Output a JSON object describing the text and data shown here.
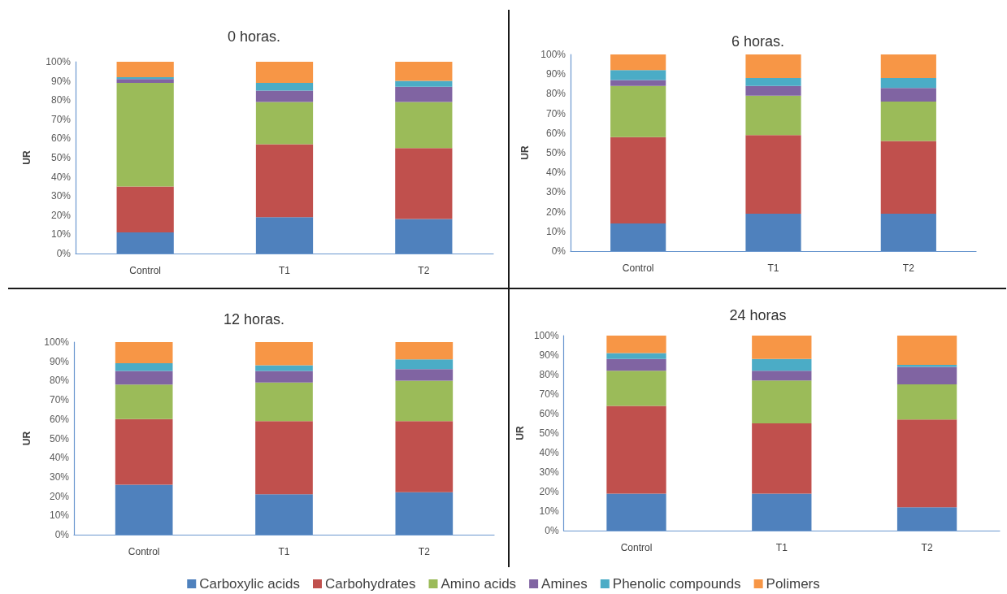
{
  "chart_data": [
    {
      "type": "bar",
      "title": "0 horas.",
      "ylabel": "UR",
      "categories": [
        "Control",
        "T1",
        "T2"
      ],
      "stacked": true,
      "ylim": [
        0,
        100
      ],
      "yticks": [
        {
          "value": 0,
          "label": "0%"
        },
        {
          "value": 10,
          "label": "10%"
        },
        {
          "value": 20,
          "label": "20%"
        },
        {
          "value": 30,
          "label": "30%"
        },
        {
          "value": 40,
          "label": "40%"
        },
        {
          "value": 50,
          "label": "50%"
        },
        {
          "value": 60,
          "label": "60%"
        },
        {
          "value": 70,
          "label": "70%"
        },
        {
          "value": 80,
          "label": "80%"
        },
        {
          "value": 90,
          "label": "90%"
        },
        {
          "value": 100,
          "label": "100%"
        }
      ],
      "grid": false,
      "legend": "bottom",
      "series": [
        {
          "name": "Carboxylic acids",
          "color": "#4f81bd",
          "values": [
            11,
            19,
            18
          ]
        },
        {
          "name": "Carbohydrates",
          "color": "#c0504d",
          "values": [
            24,
            38,
            37
          ]
        },
        {
          "name": "Amino acids",
          "color": "#9bbb59",
          "values": [
            54,
            22,
            24
          ]
        },
        {
          "name": "Amines",
          "color": "#8064a2",
          "values": [
            2,
            6,
            8
          ]
        },
        {
          "name": "Phenolic compounds",
          "color": "#4bacc6",
          "values": [
            1,
            4,
            3
          ]
        },
        {
          "name": "Polimers",
          "color": "#f79646",
          "values": [
            8,
            11,
            10
          ]
        }
      ]
    },
    {
      "type": "bar",
      "title": "6 horas.",
      "ylabel": "UR",
      "categories": [
        "Control",
        "T1",
        "T2"
      ],
      "stacked": true,
      "ylim": [
        0,
        100
      ],
      "yticks": [
        {
          "value": 0,
          "label": "0%"
        },
        {
          "value": 10,
          "label": "10%"
        },
        {
          "value": 20,
          "label": "20%"
        },
        {
          "value": 30,
          "label": "30%"
        },
        {
          "value": 40,
          "label": "40%"
        },
        {
          "value": 50,
          "label": "50%"
        },
        {
          "value": 60,
          "label": "60%"
        },
        {
          "value": 70,
          "label": "70%"
        },
        {
          "value": 80,
          "label": "80%"
        },
        {
          "value": 90,
          "label": "90%"
        },
        {
          "value": 100,
          "label": "100%"
        }
      ],
      "grid": false,
      "legend": "bottom",
      "series": [
        {
          "name": "Carboxylic acids",
          "color": "#4f81bd",
          "values": [
            14,
            19,
            19
          ]
        },
        {
          "name": "Carbohydrates",
          "color": "#c0504d",
          "values": [
            44,
            40,
            37
          ]
        },
        {
          "name": "Amino acids",
          "color": "#9bbb59",
          "values": [
            26,
            20,
            20
          ]
        },
        {
          "name": "Amines",
          "color": "#8064a2",
          "values": [
            3,
            5,
            7
          ]
        },
        {
          "name": "Phenolic compounds",
          "color": "#4bacc6",
          "values": [
            5,
            4,
            5
          ]
        },
        {
          "name": "Polimers",
          "color": "#f79646",
          "values": [
            8,
            12,
            12
          ]
        }
      ]
    },
    {
      "type": "bar",
      "title": "12 horas.",
      "ylabel": "UR",
      "categories": [
        "Control",
        "T1",
        "T2"
      ],
      "stacked": true,
      "ylim": [
        0,
        100
      ],
      "yticks": [
        {
          "value": 0,
          "label": "0%"
        },
        {
          "value": 10,
          "label": "10%"
        },
        {
          "value": 20,
          "label": "20%"
        },
        {
          "value": 30,
          "label": "30%"
        },
        {
          "value": 40,
          "label": "40%"
        },
        {
          "value": 50,
          "label": "50%"
        },
        {
          "value": 60,
          "label": "60%"
        },
        {
          "value": 70,
          "label": "70%"
        },
        {
          "value": 80,
          "label": "80%"
        },
        {
          "value": 90,
          "label": "90%"
        },
        {
          "value": 100,
          "label": "100%"
        }
      ],
      "grid": false,
      "legend": "bottom",
      "series": [
        {
          "name": "Carboxylic acids",
          "color": "#4f81bd",
          "values": [
            26,
            21,
            22
          ]
        },
        {
          "name": "Carbohydrates",
          "color": "#c0504d",
          "values": [
            34,
            38,
            37
          ]
        },
        {
          "name": "Amino acids",
          "color": "#9bbb59",
          "values": [
            18,
            20,
            21
          ]
        },
        {
          "name": "Amines",
          "color": "#8064a2",
          "values": [
            7,
            6,
            6
          ]
        },
        {
          "name": "Phenolic compounds",
          "color": "#4bacc6",
          "values": [
            4,
            3,
            5
          ]
        },
        {
          "name": "Polimers",
          "color": "#f79646",
          "values": [
            11,
            12,
            9
          ]
        }
      ]
    },
    {
      "type": "bar",
      "title": "24 horas",
      "ylabel": "UR",
      "categories": [
        "Control",
        "T1",
        "T2"
      ],
      "stacked": true,
      "ylim": [
        0,
        100
      ],
      "yticks": [
        {
          "value": 0,
          "label": "0%"
        },
        {
          "value": 10,
          "label": "10%"
        },
        {
          "value": 20,
          "label": "20%"
        },
        {
          "value": 30,
          "label": "30%"
        },
        {
          "value": 40,
          "label": "40%"
        },
        {
          "value": 50,
          "label": "50%"
        },
        {
          "value": 60,
          "label": "60%"
        },
        {
          "value": 70,
          "label": "70%"
        },
        {
          "value": 80,
          "label": "80%"
        },
        {
          "value": 90,
          "label": "90%"
        },
        {
          "value": 100,
          "label": "100%"
        }
      ],
      "grid": false,
      "legend": "bottom",
      "series": [
        {
          "name": "Carboxylic acids",
          "color": "#4f81bd",
          "values": [
            19,
            19,
            12
          ]
        },
        {
          "name": "Carbohydrates",
          "color": "#c0504d",
          "values": [
            45,
            36,
            45
          ]
        },
        {
          "name": "Amino acids",
          "color": "#9bbb59",
          "values": [
            18,
            22,
            18
          ]
        },
        {
          "name": "Amines",
          "color": "#8064a2",
          "values": [
            6,
            5,
            9
          ]
        },
        {
          "name": "Phenolic compounds",
          "color": "#4bacc6",
          "values": [
            3,
            6,
            1
          ]
        },
        {
          "name": "Polimers",
          "color": "#f79646",
          "values": [
            9,
            12,
            15
          ]
        }
      ]
    }
  ]
}
